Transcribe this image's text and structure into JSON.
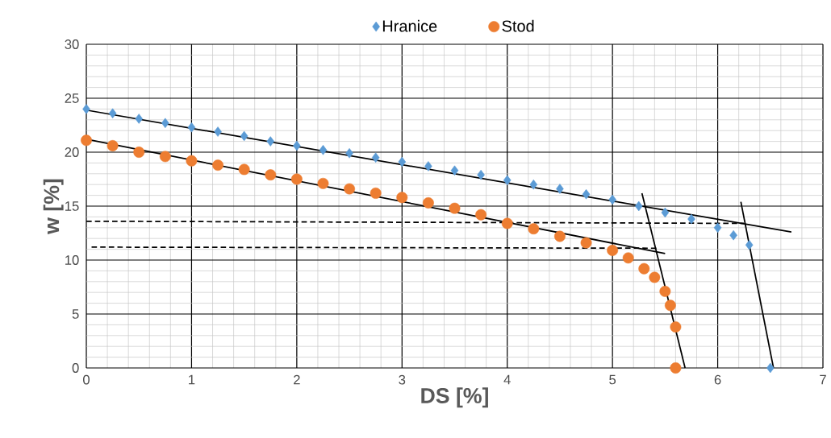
{
  "chart_data": {
    "type": "scatter",
    "xlabel": "DS [%]",
    "ylabel": "w [%]",
    "xlim": [
      0,
      7
    ],
    "ylim": [
      0,
      30
    ],
    "xticks": [
      0,
      1,
      2,
      3,
      4,
      5,
      6,
      7
    ],
    "yticks": [
      0,
      5,
      10,
      15,
      20,
      25,
      30
    ],
    "grid": true,
    "legend": "top",
    "series": [
      {
        "name": "Hranice",
        "marker": "diamond",
        "color": "#5b9bd5",
        "x": [
          0,
          0.25,
          0.5,
          0.75,
          1,
          1.25,
          1.5,
          1.75,
          2,
          2.25,
          2.5,
          2.75,
          3,
          3.25,
          3.5,
          3.75,
          4,
          4.25,
          4.5,
          4.75,
          5,
          5.25,
          5.5,
          5.75,
          6,
          6.15,
          6.3,
          6.5
        ],
        "values": [
          24.0,
          23.6,
          23.1,
          22.7,
          22.3,
          21.9,
          21.5,
          21.0,
          20.6,
          20.2,
          19.9,
          19.5,
          19.1,
          18.7,
          18.3,
          17.9,
          17.4,
          17.0,
          16.6,
          16.1,
          15.6,
          15.0,
          14.4,
          13.8,
          13.0,
          12.3,
          11.4,
          0
        ]
      },
      {
        "name": "Stod",
        "marker": "circle",
        "color": "#ed7d31",
        "x": [
          0,
          0.25,
          0.5,
          0.75,
          1,
          1.25,
          1.5,
          1.75,
          2,
          2.25,
          2.5,
          2.75,
          3,
          3.25,
          3.5,
          3.75,
          4,
          4.25,
          4.5,
          4.75,
          5,
          5.15,
          5.3,
          5.4,
          5.5,
          5.55,
          5.6,
          5.6
        ],
        "values": [
          21.1,
          20.6,
          20.0,
          19.6,
          19.2,
          18.8,
          18.4,
          17.9,
          17.5,
          17.1,
          16.6,
          16.2,
          15.8,
          15.3,
          14.8,
          14.2,
          13.4,
          12.9,
          12.2,
          11.6,
          10.9,
          10.2,
          9.2,
          8.4,
          7.1,
          5.8,
          3.8,
          0
        ]
      },
      {
        "type": "line",
        "marker": "none",
        "line_style": "solid",
        "color": "#000000",
        "x": [
          0,
          6.7
        ],
        "values": [
          23.9,
          12.6
        ]
      },
      {
        "type": "line",
        "marker": "none",
        "line_style": "solid",
        "color": "#000000",
        "x": [
          0,
          5.5
        ],
        "values": [
          21.2,
          10.6
        ]
      },
      {
        "type": "line",
        "marker": "none",
        "line_style": "solid",
        "color": "#000000",
        "x": [
          5.28,
          5.69
        ],
        "values": [
          16.2,
          0
        ]
      },
      {
        "type": "line",
        "marker": "none",
        "line_style": "solid",
        "color": "#000000",
        "x": [
          6.22,
          6.53
        ],
        "values": [
          15.4,
          0
        ]
      },
      {
        "type": "line",
        "marker": "none",
        "line_style": "dashed",
        "color": "#000000",
        "x": [
          0,
          6.25
        ],
        "values": [
          13.6,
          13.4
        ]
      },
      {
        "type": "line",
        "marker": "none",
        "line_style": "dashed",
        "color": "#000000",
        "x": [
          0.05,
          5.42
        ],
        "values": [
          11.2,
          11.1
        ]
      }
    ]
  }
}
